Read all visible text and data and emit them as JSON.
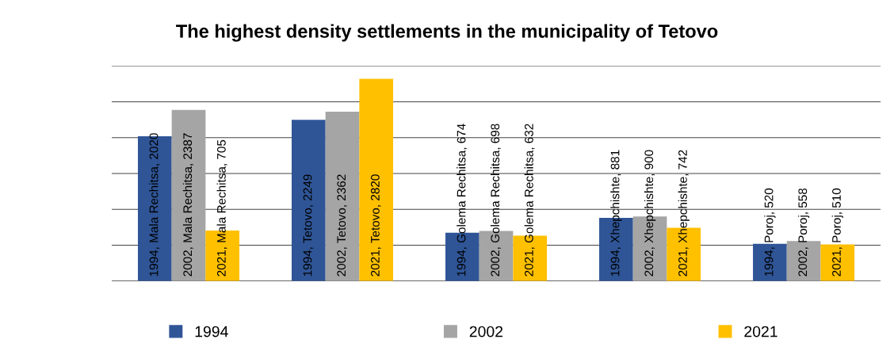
{
  "chart_data": {
    "type": "bar",
    "title": "The highest density settlements in the municipality of Tetovo",
    "categories": [
      null,
      null,
      null,
      null,
      null
    ],
    "series": [
      {
        "name": "1994",
        "color": "#2f5597",
        "values": [
          2020,
          2249,
          674,
          881,
          520
        ],
        "value_labels": [
          "1994, Mala Rechitsa, 2020",
          "1994, Tetovo, 2249",
          "1994, Golema Rechitsa, 674",
          "1994, Xhepchishte, 881",
          "1994, Poroj, 520"
        ]
      },
      {
        "name": "2002",
        "color": "#a5a5a5",
        "values": [
          2387,
          2362,
          698,
          900,
          558
        ],
        "value_labels": [
          "2002, Mala Rechitsa, 2387",
          "2002, Tetovo, 2362",
          "2002, Golema Rechitsa, 698",
          "2002, Xhepchishte, 900",
          "2002, Poroj, 558"
        ]
      },
      {
        "name": "2021",
        "color": "#ffc000",
        "values": [
          705,
          2820,
          632,
          742,
          510
        ],
        "value_labels": [
          "2021, Mala Rechitsa, 705",
          "2021, Tetovo, 2820",
          "2021, Golema Rechitsa, 632",
          "2021, Xhepchishte, 742",
          "2021, Poroj, 510"
        ]
      }
    ],
    "ylim": [
      0,
      3000
    ],
    "yticks": [
      {
        "value": 0,
        "label": null
      },
      {
        "value": 500,
        "label": null
      },
      {
        "value": 1000,
        "label": null
      },
      {
        "value": 1500,
        "label": null
      },
      {
        "value": 2000,
        "label": null
      },
      {
        "value": 2500,
        "label": null
      },
      {
        "value": 3000,
        "label": null
      }
    ],
    "grid": "y",
    "legend": "bottom"
  }
}
